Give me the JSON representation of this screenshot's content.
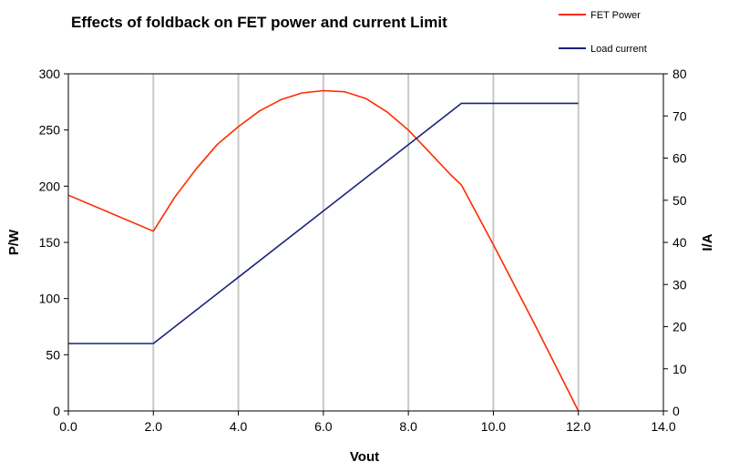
{
  "chart_data": {
    "type": "line",
    "title": "Effects of foldback on FET power and current Limit",
    "xlabel": "Vout",
    "ylabel": "P/W",
    "y2label": "I/A",
    "xlim": [
      0,
      14
    ],
    "ylim": [
      0,
      300
    ],
    "y2lim": [
      0,
      80
    ],
    "x_ticks": [
      "0.0",
      "2.0",
      "4.0",
      "6.0",
      "8.0",
      "10.0",
      "12.0",
      "14.0"
    ],
    "y_ticks": [
      "0",
      "50",
      "100",
      "150",
      "200",
      "250",
      "300"
    ],
    "y2_ticks": [
      "0",
      "10",
      "20",
      "30",
      "40",
      "50",
      "60",
      "70",
      "80"
    ],
    "grid": "vertical",
    "legend_position": "top-right",
    "series": [
      {
        "name": "FET Power",
        "color": "#ff2a00",
        "axis": "left",
        "x": [
          0,
          2,
          2.5,
          3,
          3.5,
          4,
          4.5,
          5,
          5.5,
          6,
          6.5,
          7,
          7.5,
          8,
          8.5,
          9,
          9.25,
          10,
          11,
          12
        ],
        "y": [
          192,
          160,
          190,
          215,
          237,
          253,
          267,
          277,
          283,
          285,
          284,
          278,
          266,
          250,
          230,
          210,
          201,
          148,
          75,
          0
        ]
      },
      {
        "name": "Load current",
        "color": "#1a237e",
        "axis": "right",
        "x": [
          0,
          2,
          9.25,
          12
        ],
        "y": [
          16,
          16,
          73,
          73
        ]
      }
    ]
  }
}
